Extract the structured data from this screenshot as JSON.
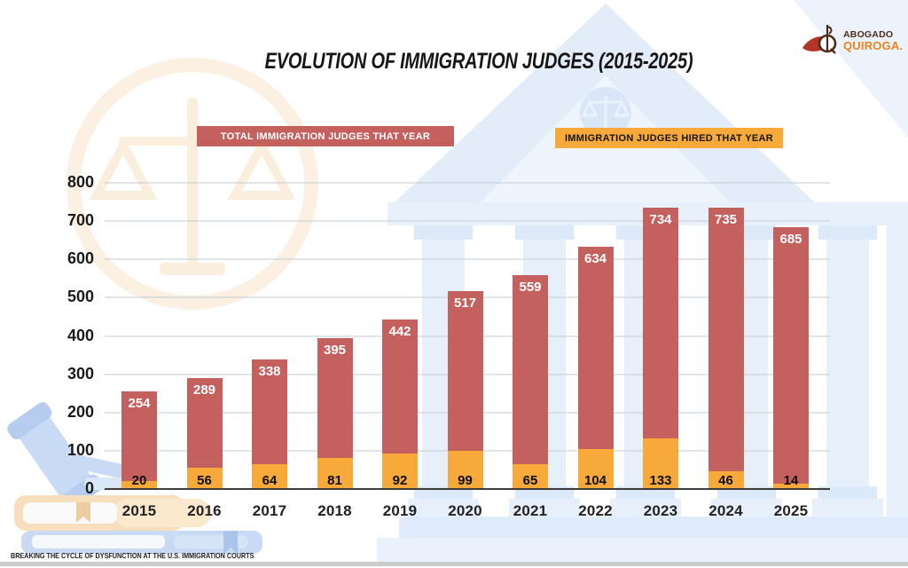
{
  "header": {
    "title": "EVOLUTION OF IMMIGRATION JUDGES (2015-2025)"
  },
  "logo": {
    "line1": "ABOGADO",
    "line2": "QUIROGA."
  },
  "legend": {
    "total_label": "TOTAL IMMIGRATION JUDGES THAT YEAR",
    "hired_label": "IMMIGRATION JUDGES HIRED THAT YEAR"
  },
  "footer": {
    "caption": "BREAKING THE CYCLE OF DYSFUNCTION AT THE U.S. IMMIGRATION COURTS"
  },
  "colors": {
    "total_bar": "#c4615e",
    "hired_bar": "#f7a93a",
    "axis_line": "#3c3c3c",
    "building_blue": "#e3edfa",
    "emblem_cream": "#fbf0e1",
    "logo_red": "#b23527",
    "logo_brown": "#4b2c1b",
    "logo_orange": "#e8831f"
  },
  "chart_data": {
    "type": "bar",
    "title": "EVOLUTION OF IMMIGRATION JUDGES (2015-2025)",
    "categories": [
      "2015",
      "2016",
      "2017",
      "2018",
      "2019",
      "2020",
      "2021",
      "2022",
      "2023",
      "2024",
      "2025"
    ],
    "series": [
      {
        "name": "TOTAL IMMIGRATION JUDGES THAT YEAR",
        "values": [
          254,
          289,
          338,
          395,
          442,
          517,
          559,
          634,
          734,
          735,
          685
        ],
        "color": "#c4615e",
        "label_color": "#ffffff"
      },
      {
        "name": "IMMIGRATION JUDGES HIRED THAT YEAR",
        "values": [
          20,
          56,
          64,
          81,
          92,
          99,
          65,
          104,
          133,
          46,
          14
        ],
        "color": "#f7a93a",
        "label_color": "#0e0e0e"
      }
    ],
    "ylim": [
      0,
      800
    ],
    "yticks": [
      0,
      100,
      200,
      300,
      400,
      500,
      600,
      700,
      800
    ],
    "grid": true,
    "legend_position": "top",
    "stacking": "overlay",
    "xlabel": "",
    "ylabel": ""
  }
}
